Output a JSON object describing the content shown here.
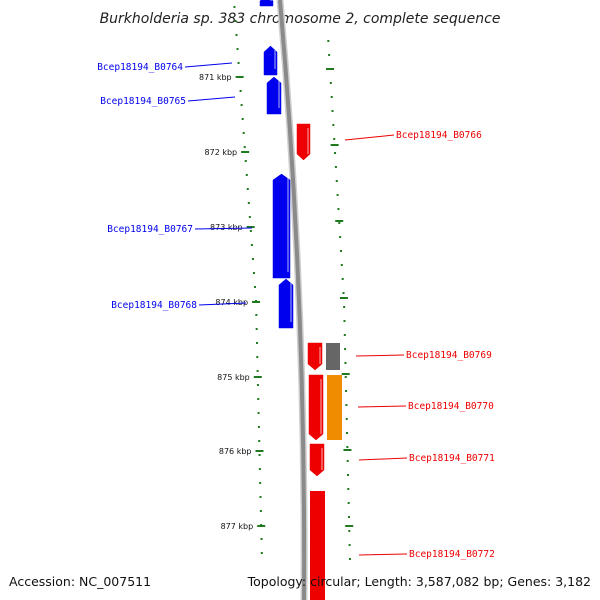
{
  "title": "Burkholderia sp. 383 chromosome 2, complete sequence",
  "footer": {
    "accession": "Accession: NC_007511",
    "summary": "Topology: circular; Length: 3,587,082 bp; Genes: 3,182"
  },
  "colors": {
    "forward_strand": "#0000ee",
    "reverse_strand": "#ee0000",
    "tick": "#1f7a1f",
    "backbone": "#8a8a8a",
    "gray_feature": "#666666",
    "orange_feature": "#f08c00"
  },
  "chart_data": {
    "type": "diagram",
    "title": "Burkholderia sp. 383 chromosome 2, complete sequence",
    "kbp_ticks": [
      "871 kbp",
      "872 kbp",
      "873 kbp",
      "874 kbp",
      "875 kbp",
      "876 kbp",
      "877 kbp"
    ],
    "forward_genes": [
      "Bcep18194_B0764",
      "Bcep18194_B0765",
      "Bcep18194_B0767",
      "Bcep18194_B0768"
    ],
    "reverse_genes": [
      "Bcep18194_B0766",
      "Bcep18194_B0769",
      "Bcep18194_B0770",
      "Bcep18194_B0771",
      "Bcep18194_B0772"
    ]
  }
}
